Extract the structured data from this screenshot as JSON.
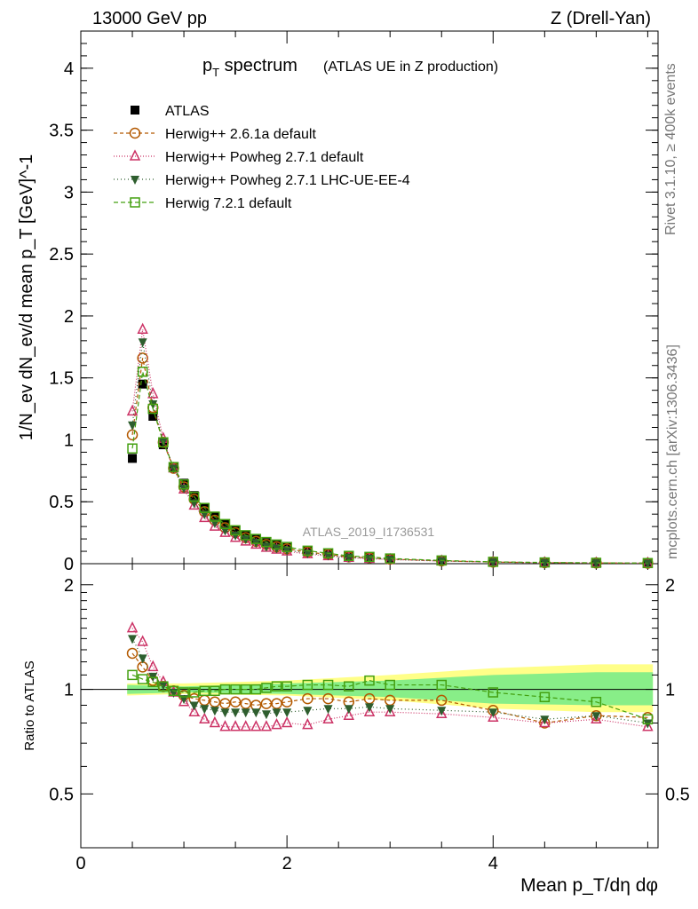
{
  "header": {
    "left": "13000 GeV pp",
    "right": "Z (Drell-Yan)"
  },
  "title": {
    "main_prefix": "p",
    "main_sub": "T",
    "main_suffix": " spectrum",
    "paren": "(ATLAS UE in Z production)"
  },
  "side_labels": {
    "rivet": "Rivet 3.1.10, ≥ 400k events",
    "mcplots": "mcplots.cern.ch [arXiv:1306.3436]"
  },
  "watermark": "ATLAS_2019_I1736531",
  "axes": {
    "top_ylabel": "1/N_ev dN_ev/d mean p_T [GeV]^-1",
    "bottom_ylabel": "Ratio to ATLAS",
    "xlabel": "Mean p_T/dη dφ",
    "top_yticks": [
      "0",
      "0.5",
      "1",
      "1.5",
      "2",
      "2.5",
      "3",
      "3.5",
      "4"
    ],
    "bottom_yticks_left": [
      "0.5",
      "1",
      "2"
    ],
    "bottom_yticks_right": [
      "0.5",
      "1",
      "2"
    ],
    "xticks": [
      "0",
      "2",
      "4"
    ]
  },
  "legend": [
    {
      "label": "ATLAS",
      "color": "#000000",
      "marker": "square-filled"
    },
    {
      "label": "Herwig++ 2.6.1a default",
      "color": "#b35900",
      "marker": "circle-open"
    },
    {
      "label": "Herwig++ Powheg 2.7.1 default",
      "color": "#cc3366",
      "marker": "triangle-up-open"
    },
    {
      "label": "Herwig++ Powheg 2.7.1 LHC-UE-EE-4",
      "color": "#2e5e2e",
      "marker": "triangle-down-filled"
    },
    {
      "label": "Herwig 7.2.1 default",
      "color": "#44a010",
      "marker": "square-open"
    }
  ],
  "chart_data": {
    "type": "scatter",
    "title": "pT spectrum (ATLAS UE in Z production)",
    "xlabel": "Mean pT/dη dφ",
    "ylabel": "1/Nev dNev/d mean pT [GeV]^-1",
    "xlim": [
      0,
      5.6
    ],
    "ylim_top": [
      0,
      4.3
    ],
    "ylim_ratio": [
      0.35,
      2.3
    ],
    "x": [
      0.5,
      0.6,
      0.7,
      0.8,
      0.9,
      1.0,
      1.1,
      1.2,
      1.3,
      1.4,
      1.5,
      1.6,
      1.7,
      1.8,
      1.9,
      2.0,
      2.2,
      2.4,
      2.6,
      2.8,
      3.0,
      3.5,
      4.0,
      4.5,
      5.0,
      5.5
    ],
    "series": [
      {
        "name": "ATLAS",
        "values": [
          0.85,
          1.45,
          1.19,
          0.96,
          0.78,
          0.65,
          0.55,
          0.45,
          0.38,
          0.32,
          0.27,
          0.23,
          0.2,
          0.17,
          0.15,
          0.13,
          0.1,
          0.08,
          0.06,
          0.05,
          0.04,
          0.025,
          0.015,
          0.01,
          0.007,
          0.005
        ]
      },
      {
        "name": "Herwig++ 2.6.1a default",
        "values": [
          1.04,
          1.66,
          1.26,
          0.98,
          0.77,
          0.62,
          0.52,
          0.42,
          0.35,
          0.29,
          0.25,
          0.21,
          0.18,
          0.155,
          0.136,
          0.12,
          0.094,
          0.075,
          0.055,
          0.047,
          0.037,
          0.023,
          0.013,
          0.008,
          0.006,
          0.004
        ]
      },
      {
        "name": "Herwig++ Powheg 2.7.1 default",
        "values": [
          1.23,
          1.89,
          1.37,
          1.01,
          0.77,
          0.6,
          0.47,
          0.37,
          0.3,
          0.25,
          0.21,
          0.18,
          0.155,
          0.13,
          0.115,
          0.1,
          0.078,
          0.062,
          0.048,
          0.04,
          0.033,
          0.021,
          0.013,
          0.008,
          0.006,
          0.004
        ]
      },
      {
        "name": "Herwig++ Powheg 2.7.1 LHC-UE-EE-4",
        "values": [
          1.12,
          1.79,
          1.29,
          0.99,
          0.77,
          0.61,
          0.49,
          0.4,
          0.33,
          0.27,
          0.23,
          0.2,
          0.17,
          0.14,
          0.125,
          0.11,
          0.085,
          0.068,
          0.052,
          0.043,
          0.035,
          0.022,
          0.013,
          0.008,
          0.006,
          0.004
        ]
      },
      {
        "name": "Herwig 7.2.1 default",
        "values": [
          0.93,
          1.55,
          1.25,
          0.98,
          0.78,
          0.64,
          0.54,
          0.45,
          0.38,
          0.32,
          0.27,
          0.23,
          0.2,
          0.175,
          0.155,
          0.135,
          0.105,
          0.084,
          0.063,
          0.055,
          0.042,
          0.026,
          0.015,
          0.01,
          0.007,
          0.005
        ]
      }
    ],
    "ratio_series": [
      {
        "name": "Herwig++ 2.6.1a default",
        "values": [
          1.27,
          1.16,
          1.06,
          1.02,
          0.99,
          0.96,
          0.94,
          0.93,
          0.92,
          0.91,
          0.92,
          0.91,
          0.9,
          0.91,
          0.91,
          0.92,
          0.94,
          0.94,
          0.92,
          0.94,
          0.93,
          0.93,
          0.87,
          0.8,
          0.84,
          0.83
        ]
      },
      {
        "name": "Herwig++ Powheg 2.7.1 default",
        "values": [
          1.5,
          1.37,
          1.16,
          1.05,
          0.98,
          0.92,
          0.86,
          0.82,
          0.8,
          0.78,
          0.78,
          0.78,
          0.78,
          0.78,
          0.79,
          0.8,
          0.79,
          0.82,
          0.84,
          0.86,
          0.86,
          0.85,
          0.83,
          0.8,
          0.82,
          0.78
        ]
      },
      {
        "name": "Herwig++ Powheg 2.7.1 LHC-UE-EE-4",
        "values": [
          1.4,
          1.23,
          1.09,
          1.03,
          0.98,
          0.94,
          0.9,
          0.88,
          0.87,
          0.86,
          0.86,
          0.86,
          0.86,
          0.85,
          0.86,
          0.86,
          0.87,
          0.88,
          0.88,
          0.89,
          0.88,
          0.87,
          0.86,
          0.82,
          0.84,
          0.8
        ]
      },
      {
        "name": "Herwig 7.2.1 default",
        "values": [
          1.1,
          1.07,
          1.05,
          1.02,
          0.99,
          0.98,
          0.98,
          0.99,
          0.99,
          1.0,
          1.0,
          1.0,
          1.0,
          1.01,
          1.02,
          1.02,
          1.03,
          1.03,
          1.02,
          1.06,
          1.03,
          1.03,
          0.98,
          0.95,
          0.92,
          0.82
        ]
      }
    ],
    "uncertainty_band": {
      "x": [
        0.45,
        1.0,
        2.0,
        3.0,
        4.0,
        5.0,
        5.55
      ],
      "inner_low": [
        0.97,
        0.98,
        0.97,
        0.95,
        0.91,
        0.9,
        0.9
      ],
      "inner_high": [
        1.03,
        1.02,
        1.04,
        1.06,
        1.1,
        1.12,
        1.12
      ],
      "outer_low": [
        0.96,
        0.97,
        0.96,
        0.93,
        0.88,
        0.86,
        0.86
      ],
      "outer_high": [
        1.04,
        1.04,
        1.06,
        1.1,
        1.15,
        1.18,
        1.18
      ]
    }
  }
}
